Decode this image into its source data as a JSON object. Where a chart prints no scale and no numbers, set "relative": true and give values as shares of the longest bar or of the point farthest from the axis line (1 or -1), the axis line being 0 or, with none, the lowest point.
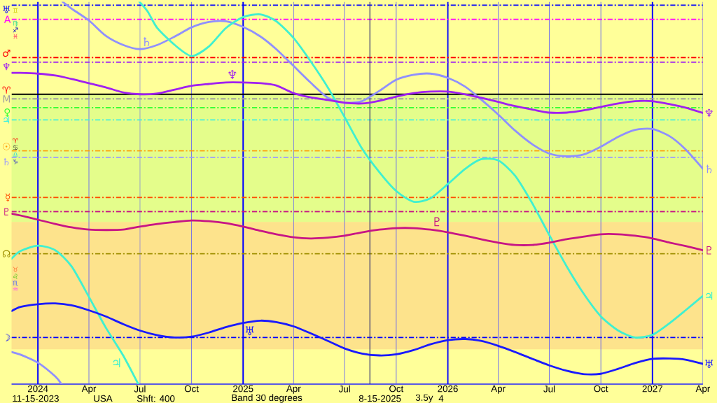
{
  "chart_data": {
    "type": "line",
    "relative": true,
    "xlim": [
      "2023-11-15",
      "2027-04-01"
    ],
    "xticks": [
      {
        "value": "2024-01-01",
        "label": "2024"
      },
      {
        "value": "2024-04-01",
        "label": "Apr"
      },
      {
        "value": "2024-07-01",
        "label": "Jul"
      },
      {
        "value": "2024-10-01",
        "label": "Oct"
      },
      {
        "value": "2025-01-01",
        "label": "2025"
      },
      {
        "value": "2025-04-01",
        "label": "Apr"
      },
      {
        "value": "2025-07-01",
        "label": "Jul"
      },
      {
        "value": "2025-10-01",
        "label": "Oct"
      },
      {
        "value": "2026-01-01",
        "label": "2026"
      },
      {
        "value": "2026-04-01",
        "label": "Apr"
      },
      {
        "value": "2026-07-01",
        "label": "Jul"
      },
      {
        "value": "2026-10-01",
        "label": "Oct"
      },
      {
        "value": "2027-01-01",
        "label": "2027"
      },
      {
        "value": "2027-04-01",
        "label": "Apr"
      }
    ],
    "grid": "x",
    "series": [
      {
        "name": "♄",
        "color": "#9090ff",
        "x": [
          "2023-11-15",
          "2023-12-01",
          "2024-01-01",
          "2024-02-01",
          "2024-02-12",
          "2024-02-13",
          "2024-02-14",
          "2024-03-01",
          "2024-04-01",
          "2024-05-01",
          "2024-06-01",
          "2024-07-01",
          "2024-08-01",
          "2024-09-01",
          "2024-10-01",
          "2024-11-01",
          "2024-12-01",
          "2025-01-01",
          "2025-02-01",
          "2025-03-01",
          "2025-04-01",
          "2025-05-01",
          "2025-06-01",
          "2025-07-01",
          "2025-08-01",
          "2025-09-01",
          "2025-10-01",
          "2025-11-01",
          "2025-12-01",
          "2026-01-01",
          "2026-02-01",
          "2026-03-01",
          "2026-04-01",
          "2026-05-01",
          "2026-06-01",
          "2026-07-01",
          "2026-08-01",
          "2026-09-01",
          "2026-10-01",
          "2026-11-01",
          "2026-12-01",
          "2027-01-01",
          "2027-02-01",
          "2027-03-01",
          "2027-04-01"
        ],
        "values": [
          0.084,
          0.077,
          0.056,
          0.02,
          0,
          null,
          1,
          0.982,
          0.951,
          0.911,
          0.887,
          0.876,
          0.887,
          0.909,
          0.933,
          0.947,
          0.949,
          0.934,
          0.909,
          0.876,
          0.832,
          0.789,
          0.749,
          0.736,
          0.74,
          0.767,
          0.796,
          0.809,
          0.812,
          0.801,
          0.778,
          0.745,
          0.705,
          0.663,
          0.627,
          0.603,
          0.596,
          0.601,
          0.621,
          0.647,
          0.665,
          0.667,
          0.648,
          0.614,
          0.563
        ]
      },
      {
        "name": "♃",
        "color": "#40f0d0",
        "x": [
          "2023-11-15",
          "2023-12-01",
          "2024-01-01",
          "2024-02-01",
          "2024-03-01",
          "2024-04-01",
          "2024-05-01",
          "2024-06-01",
          "2024-06-28",
          "2024-06-29",
          "2024-06-30",
          "2024-07-15",
          "2024-08-01",
          "2024-09-01",
          "2024-10-01",
          "2024-11-01",
          "2024-12-01",
          "2025-01-01",
          "2025-02-01",
          "2025-03-01",
          "2025-04-01",
          "2025-05-01",
          "2025-06-01",
          "2025-07-01",
          "2025-08-01",
          "2025-09-01",
          "2025-10-01",
          "2025-11-01",
          "2025-12-01",
          "2026-01-01",
          "2026-02-01",
          "2026-03-01",
          "2026-04-01",
          "2026-05-01",
          "2026-06-01",
          "2026-07-01",
          "2026-08-01",
          "2026-09-01",
          "2026-10-01",
          "2026-11-01",
          "2026-12-01",
          "2027-01-01",
          "2027-02-01",
          "2027-03-01",
          "2027-04-01"
        ],
        "values": [
          0.328,
          0.348,
          0.362,
          0.35,
          0.308,
          0.228,
          0.148,
          0.075,
          0,
          null,
          1,
          0.974,
          0.931,
          0.887,
          0.858,
          0.883,
          0.931,
          0.96,
          0.967,
          0.949,
          0.905,
          0.845,
          0.776,
          0.698,
          0.616,
          0.554,
          0.505,
          0.477,
          0.486,
          0.523,
          0.563,
          0.588,
          0.585,
          0.545,
          0.472,
          0.39,
          0.308,
          0.235,
          0.177,
          0.14,
          0.122,
          0.129,
          0.16,
          0.193,
          0.231
        ]
      },
      {
        "name": "♆",
        "color": "#a020f0",
        "x": [
          "2023-11-15",
          "2023-12-01",
          "2024-01-01",
          "2024-02-01",
          "2024-03-01",
          "2024-04-01",
          "2024-05-01",
          "2024-06-01",
          "2024-07-01",
          "2024-08-01",
          "2024-09-01",
          "2024-10-01",
          "2024-11-01",
          "2024-12-01",
          "2025-01-01",
          "2025-02-01",
          "2025-03-01",
          "2025-04-01",
          "2025-05-01",
          "2025-06-01",
          "2025-07-01",
          "2025-08-01",
          "2025-09-01",
          "2025-10-01",
          "2025-11-01",
          "2025-12-01",
          "2026-01-01",
          "2026-02-01",
          "2026-03-01",
          "2026-04-01",
          "2026-05-01",
          "2026-06-01",
          "2026-07-01",
          "2026-08-01",
          "2026-09-01",
          "2026-10-01",
          "2026-11-01",
          "2026-12-01",
          "2027-01-01",
          "2027-02-01",
          "2027-03-01",
          "2027-04-01"
        ],
        "values": [
          0.814,
          0.814,
          0.812,
          0.807,
          0.798,
          0.787,
          0.776,
          0.763,
          0.758,
          0.76,
          0.77,
          0.78,
          0.785,
          0.789,
          0.789,
          0.787,
          0.781,
          0.761,
          0.75,
          0.743,
          0.736,
          0.734,
          0.741,
          0.752,
          0.761,
          0.765,
          0.765,
          0.758,
          0.749,
          0.738,
          0.727,
          0.718,
          0.71,
          0.71,
          0.716,
          0.725,
          0.734,
          0.74,
          0.74,
          0.732,
          0.723,
          0.709
        ]
      },
      {
        "name": "♇",
        "color": "#c71585",
        "x": [
          "2023-11-15",
          "2023-12-01",
          "2024-01-01",
          "2024-02-01",
          "2024-03-01",
          "2024-04-01",
          "2024-05-01",
          "2024-06-01",
          "2024-07-01",
          "2024-08-01",
          "2024-09-01",
          "2024-10-01",
          "2024-11-01",
          "2024-12-01",
          "2025-01-01",
          "2025-02-01",
          "2025-03-01",
          "2025-04-01",
          "2025-05-01",
          "2025-06-01",
          "2025-07-01",
          "2025-08-01",
          "2025-09-01",
          "2025-10-01",
          "2025-11-01",
          "2025-12-01",
          "2026-01-01",
          "2026-02-01",
          "2026-03-01",
          "2026-04-01",
          "2026-05-01",
          "2026-06-01",
          "2026-07-01",
          "2026-08-01",
          "2026-09-01",
          "2026-10-01",
          "2026-11-01",
          "2026-12-01",
          "2027-01-01",
          "2027-02-01",
          "2027-03-01",
          "2027-04-01"
        ],
        "values": [
          0.446,
          0.441,
          0.43,
          0.419,
          0.41,
          0.404,
          0.403,
          0.404,
          0.412,
          0.419,
          0.424,
          0.428,
          0.426,
          0.421,
          0.412,
          0.401,
          0.392,
          0.384,
          0.381,
          0.383,
          0.388,
          0.397,
          0.404,
          0.408,
          0.408,
          0.404,
          0.397,
          0.388,
          0.379,
          0.37,
          0.364,
          0.364,
          0.37,
          0.379,
          0.386,
          0.392,
          0.392,
          0.388,
          0.381,
          0.37,
          0.361,
          0.35
        ]
      },
      {
        "name": "♅",
        "color": "#1a1aff",
        "x": [
          "2023-11-15",
          "2023-12-01",
          "2024-01-01",
          "2024-02-01",
          "2024-03-01",
          "2024-04-01",
          "2024-05-01",
          "2024-06-01",
          "2024-07-01",
          "2024-08-01",
          "2024-09-01",
          "2024-10-01",
          "2024-11-01",
          "2024-12-01",
          "2025-01-01",
          "2025-02-01",
          "2025-03-01",
          "2025-04-01",
          "2025-05-01",
          "2025-06-01",
          "2025-07-01",
          "2025-08-01",
          "2025-09-01",
          "2025-10-01",
          "2025-11-01",
          "2025-12-01",
          "2026-01-01",
          "2026-02-01",
          "2026-03-01",
          "2026-04-01",
          "2026-05-01",
          "2026-06-01",
          "2026-07-01",
          "2026-08-01",
          "2026-09-01",
          "2026-10-01",
          "2026-11-01",
          "2026-12-01",
          "2027-01-01",
          "2027-02-01",
          "2027-03-01",
          "2027-04-01"
        ],
        "values": [
          0.191,
          0.202,
          0.209,
          0.211,
          0.206,
          0.193,
          0.177,
          0.157,
          0.14,
          0.128,
          0.122,
          0.124,
          0.135,
          0.149,
          0.16,
          0.166,
          0.162,
          0.151,
          0.133,
          0.113,
          0.093,
          0.08,
          0.075,
          0.078,
          0.089,
          0.104,
          0.115,
          0.118,
          0.113,
          0.1,
          0.084,
          0.066,
          0.049,
          0.035,
          0.026,
          0.027,
          0.04,
          0.055,
          0.066,
          0.067,
          0.064,
          0.053
        ]
      }
    ],
    "ref_lines": [
      {
        "axis": "y",
        "value": 0.991,
        "label": "♅",
        "color": "#0000ff",
        "line_style": "dashed"
      },
      {
        "axis": "y",
        "value": 0.954,
        "label": "A",
        "color": "#ff00ff",
        "line_style": "dashed"
      },
      {
        "axis": "y",
        "value": 0.854,
        "label": "♂",
        "color": "#ff0000",
        "line_style": "dashed"
      },
      {
        "axis": "y",
        "value": 0.842,
        "label": "♆",
        "color": "#a020f0",
        "line_style": "dashed"
      },
      {
        "axis": "y",
        "value": 0.758,
        "label": "♈",
        "color": "#000000",
        "line_style": "solid"
      },
      {
        "axis": "y",
        "value": 0.746,
        "label": "M",
        "color": "#a0a0a0",
        "line_style": "dashed"
      },
      {
        "axis": "y",
        "value": 0.723,
        "label": "♀",
        "color": "#33ff33",
        "line_style": "dashed"
      },
      {
        "axis": "y",
        "value": 0.691,
        "label": "♃",
        "color": "#40f0e0",
        "line_style": "dashed"
      },
      {
        "axis": "y",
        "value": 0.61,
        "label": "☉",
        "color": "#ff9900",
        "line_style": "dashed"
      },
      {
        "axis": "y",
        "value": 0.593,
        "label": "♄",
        "color": "#9999ff",
        "line_style": "dashed"
      },
      {
        "axis": "y",
        "value": 0.488,
        "label": "☿",
        "color": "#ff5000",
        "line_style": "dashed"
      },
      {
        "axis": "y",
        "value": 0.451,
        "label": "♇",
        "color": "#c71585",
        "line_style": "dashed"
      },
      {
        "axis": "y",
        "value": 0.341,
        "label": "☊",
        "color": "#a09000",
        "line_style": "dashed"
      },
      {
        "axis": "y",
        "value": 0.122,
        "label": "☽",
        "color": "#0000ff",
        "line_style": "dashed"
      },
      {
        "axis": "x",
        "value": "2025-08-15",
        "color": "#303070",
        "line_style": "solid"
      }
    ],
    "bands": [
      {
        "axis": "y",
        "from": 0.424,
        "to": 0.758,
        "color": "#e4fd8b"
      },
      {
        "axis": "y",
        "from": 0.091,
        "to": 0.424,
        "color": "#fde38c"
      }
    ],
    "annotations": [
      "♊",
      "♍",
      "♐",
      "♓",
      "♈",
      "♋",
      "♎",
      "♑",
      "♉",
      "♌",
      "♏",
      "♒",
      "11-15-2023",
      "USA",
      "Shft: 400",
      "Band 30 degrees",
      "8-15-2025",
      "3.5y",
      "4"
    ]
  }
}
